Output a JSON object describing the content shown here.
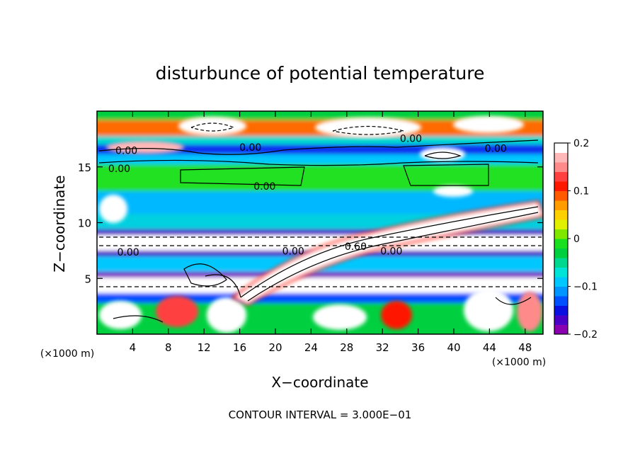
{
  "chart_data": {
    "type": "heatmap",
    "title": "disturbunce of potential temperature",
    "xlabel": "X−coordinate",
    "ylabel": "Z−coordinate",
    "x_unit_left": "(×1000 m)",
    "x_unit_right": "(×1000 m)",
    "xlim": [
      0,
      50
    ],
    "ylim": [
      0,
      20
    ],
    "x_ticks": [
      4,
      8,
      12,
      16,
      20,
      24,
      28,
      32,
      36,
      40,
      44,
      48
    ],
    "y_ticks": [
      5,
      10,
      15
    ],
    "colorbar": {
      "range": [
        -0.2,
        0.2
      ],
      "tick_values": [
        0.2,
        0.1,
        0,
        -0.1,
        -0.2
      ],
      "tick_labels": [
        "0.2",
        "0.1",
        "0",
        "−0.1",
        "−0.2"
      ],
      "colors": [
        "#8a00b0",
        "#4b00c8",
        "#0a10e0",
        "#0050ff",
        "#0095ff",
        "#00c8ff",
        "#00e4d8",
        "#00d890",
        "#00d040",
        "#18e020",
        "#80e800",
        "#e0f000",
        "#ffd000",
        "#ff9c00",
        "#ff5a00",
        "#ff1800",
        "#ff4040",
        "#ff8a8a",
        "#ffb8b8",
        "#ffffff"
      ]
    },
    "contour_labels": [
      {
        "text": "0.00",
        "x": 3.3,
        "y": 16.4
      },
      {
        "text": "0.00",
        "x": 17.2,
        "y": 16.7
      },
      {
        "text": "0.00",
        "x": 35.2,
        "y": 17.5
      },
      {
        "text": "0.00",
        "x": 44.7,
        "y": 16.6
      },
      {
        "text": "0.00",
        "x": 2.5,
        "y": 14.8
      },
      {
        "text": "0.00",
        "x": 18.8,
        "y": 13.2
      },
      {
        "text": "0.60",
        "x": 29.0,
        "y": 7.8
      },
      {
        "text": "0.00",
        "x": 33.0,
        "y": 7.4
      },
      {
        "text": "0.00",
        "x": 22.0,
        "y": 7.4
      },
      {
        "text": "0.00",
        "x": 3.5,
        "y": 7.3
      }
    ],
    "footer": "CONTOUR INTERVAL = 3.000E−01"
  }
}
